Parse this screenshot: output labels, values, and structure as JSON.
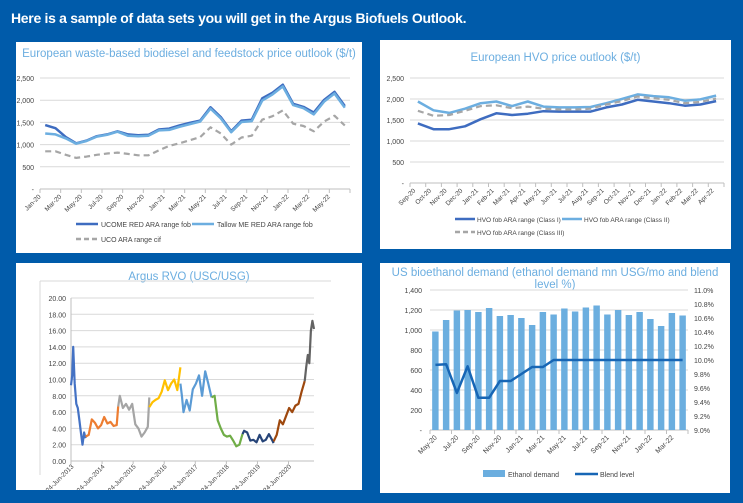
{
  "header": {
    "text": "Here is a sample of data sets you will get in the Argus Biofuels Outlook."
  },
  "colors": {
    "background": "#005BAA",
    "title": "#6CAEE0",
    "dark_blue": "#3E6CC0",
    "light_blue": "#6CAEE0",
    "grey": "#A6A6A6",
    "bar": "#6BAEDF",
    "blend": "#1766B5"
  },
  "chart_data": [
    {
      "id": "biodiesel",
      "type": "line",
      "title": "European waste-based biodiesel and feedstock price outlook ($/t)",
      "xlabel": "",
      "ylabel": "",
      "ylim": [
        0,
        2500
      ],
      "yticks": [
        "-",
        "500",
        "1,000",
        "1,500",
        "2,000",
        "2,500"
      ],
      "ytick_values": [
        0,
        500,
        1000,
        1500,
        2000,
        2500
      ],
      "x_tick_labels": [
        "Jan-20",
        "Mar-20",
        "May-20",
        "Jul-20",
        "Sep-20",
        "Nov-20",
        "Jan-21",
        "Mar-21",
        "May-21",
        "Jul-21",
        "Sep-21",
        "Nov-21",
        "Jan-22",
        "Mar-22",
        "May-22"
      ],
      "x": [
        "Jan-20",
        "Feb-20",
        "Mar-20",
        "Apr-20",
        "May-20",
        "Jun-20",
        "Jul-20",
        "Aug-20",
        "Sep-20",
        "Oct-20",
        "Nov-20",
        "Dec-20",
        "Jan-21",
        "Feb-21",
        "Mar-21",
        "Apr-21",
        "May-21",
        "Jun-21",
        "Jul-21",
        "Aug-21",
        "Sep-21",
        "Oct-21",
        "Nov-21",
        "Dec-21",
        "Jan-22",
        "Feb-22",
        "Mar-22",
        "Apr-22",
        "May-22",
        "Jun-22"
      ],
      "grid": true,
      "legend": "bottom",
      "series": [
        {
          "name": "UCOME RED ARA range fob",
          "style": "solid",
          "color": "#3E6CC0",
          "values": [
            1440,
            1370,
            1170,
            1030,
            1090,
            1190,
            1230,
            1300,
            1230,
            1210,
            1220,
            1340,
            1360,
            1430,
            1490,
            1540,
            1840,
            1620,
            1300,
            1540,
            1560,
            2040,
            2170,
            2350,
            1920,
            1850,
            1720,
            2010,
            2190,
            1870
          ]
        },
        {
          "name": "Tallow ME RED ARA range fob",
          "style": "solid",
          "color": "#6CAEE0",
          "values": [
            1250,
            1230,
            1140,
            1020,
            1080,
            1180,
            1220,
            1290,
            1200,
            1190,
            1200,
            1320,
            1330,
            1400,
            1460,
            1520,
            1810,
            1590,
            1280,
            1510,
            1530,
            1990,
            2130,
            2310,
            1890,
            1820,
            1680,
            1970,
            2150,
            1830
          ]
        },
        {
          "name": "UCO ARA range cif",
          "style": "dashed",
          "color": "#A6A6A6",
          "values": [
            850,
            850,
            770,
            700,
            730,
            770,
            800,
            820,
            790,
            760,
            760,
            870,
            970,
            1030,
            1100,
            1170,
            1390,
            1250,
            1000,
            1160,
            1200,
            1560,
            1640,
            1770,
            1470,
            1420,
            1300,
            1520,
            1650,
            1430
          ]
        }
      ]
    },
    {
      "id": "hvo",
      "type": "line",
      "title": "European HVO price outlook ($/t)",
      "xlabel": "",
      "ylabel": "",
      "ylim": [
        0,
        2500
      ],
      "yticks": [
        "-",
        "500",
        "1,000",
        "1,500",
        "2,000",
        "2,500"
      ],
      "ytick_values": [
        0,
        500,
        1000,
        1500,
        2000,
        2500
      ],
      "x": [
        "Sep-20",
        "Oct-20",
        "Nov-20",
        "Dec-20",
        "Jan-21",
        "Feb-21",
        "Mar-21",
        "Apr-21",
        "May-21",
        "Jun-21",
        "Jul-21",
        "Aug-21",
        "Sep-21",
        "Oct-21",
        "Nov-21",
        "Dec-21",
        "Jan-22",
        "Feb-22",
        "Mar-22",
        "Apr-22"
      ],
      "grid": true,
      "legend": "bottom",
      "series": [
        {
          "name": "HVO fob ARA range (Class I)",
          "style": "solid",
          "color": "#3E6CC0",
          "values": [
            1420,
            1280,
            1280,
            1350,
            1520,
            1660,
            1620,
            1650,
            1710,
            1700,
            1700,
            1700,
            1800,
            1870,
            1980,
            1940,
            1900,
            1840,
            1870,
            1950
          ]
        },
        {
          "name": "HVO fob ARA range (Class II)",
          "style": "solid",
          "color": "#6CAEE0",
          "values": [
            1940,
            1730,
            1670,
            1770,
            1900,
            1940,
            1830,
            1940,
            1820,
            1800,
            1800,
            1810,
            1900,
            2000,
            2110,
            2070,
            2040,
            1960,
            1990,
            2080
          ]
        },
        {
          "name": "HVO fob ARA range (Class III)",
          "style": "dashed",
          "color": "#A6A6A6",
          "values": [
            1720,
            1600,
            1620,
            1720,
            1830,
            1850,
            1780,
            1820,
            1770,
            1750,
            1750,
            1770,
            1870,
            1950,
            2060,
            2020,
            1980,
            1900,
            1930,
            2010
          ]
        }
      ]
    },
    {
      "id": "rvo",
      "type": "line",
      "title": "Argus RVO (USC/USG)",
      "xlabel": "",
      "ylabel": "",
      "ylim": [
        0,
        20
      ],
      "yticks": [
        "0.00",
        "2.00",
        "4.00",
        "6.00",
        "8.00",
        "10.00",
        "12.00",
        "14.00",
        "16.00",
        "18.00",
        "20.00"
      ],
      "ytick_values": [
        0,
        2,
        4,
        6,
        8,
        10,
        12,
        14,
        16,
        18,
        20
      ],
      "x_tick_labels": [
        "24-Jun-2013",
        "24-Jun-2014",
        "24-Jun-2015",
        "24-Jun-2016",
        "24-Jun-2017",
        "24-Jun-2018",
        "24-Jun-2019",
        "24-Jun-2020"
      ],
      "x_range_years": [
        2013.48,
        2021.3
      ],
      "grid": true,
      "legend": "none",
      "series": [
        {
          "name": "2013",
          "color": "#4472C4",
          "x": [
            2013.48,
            2013.52,
            2013.55,
            2013.6,
            2013.65,
            2013.7,
            2013.75,
            2013.8,
            2013.85,
            2013.9,
            2013.95
          ],
          "values": [
            9.3,
            10.5,
            14.0,
            9.5,
            7.0,
            6.5,
            5.0,
            3.5,
            2.0,
            3.5,
            2.8
          ]
        },
        {
          "name": "2014",
          "color": "#ED7D31",
          "x": [
            2013.95,
            2014.05,
            2014.15,
            2014.25,
            2014.35,
            2014.45,
            2014.55,
            2014.65,
            2014.75,
            2014.85,
            2014.95,
            2015.0
          ],
          "values": [
            3.0,
            3.2,
            5.1,
            4.7,
            4.0,
            4.4,
            5.4,
            4.6,
            4.8,
            4.3,
            4.4,
            6.7
          ]
        },
        {
          "name": "2015",
          "color": "#A5A5A5",
          "x": [
            2015.0,
            2015.05,
            2015.15,
            2015.25,
            2015.35,
            2015.45,
            2015.55,
            2015.65,
            2015.75,
            2015.85,
            2015.95,
            2016.0
          ],
          "values": [
            6.7,
            8.0,
            6.5,
            7.0,
            6.3,
            7.0,
            4.5,
            4.0,
            3.0,
            3.5,
            4.2,
            7.8
          ]
        },
        {
          "name": "2016",
          "color": "#FFC000",
          "x": [
            2016.0,
            2016.1,
            2016.2,
            2016.3,
            2016.4,
            2016.5,
            2016.6,
            2016.7,
            2016.8,
            2016.9,
            2017.0
          ],
          "values": [
            6.6,
            7.2,
            7.5,
            7.7,
            8.5,
            9.9,
            8.7,
            9.5,
            10.0,
            8.7,
            11.5
          ]
        },
        {
          "name": "2017",
          "color": "#5B9BD5",
          "x": [
            2017.0,
            2017.05,
            2017.1,
            2017.2,
            2017.3,
            2017.4,
            2017.5,
            2017.6,
            2017.7,
            2017.8,
            2017.9,
            2018.0
          ],
          "values": [
            9.5,
            8.0,
            6.0,
            7.5,
            6.2,
            8.8,
            9.5,
            10.5,
            8.0,
            11.0,
            9.5,
            7.8
          ]
        },
        {
          "name": "2018",
          "color": "#70AD47",
          "x": [
            2018.0,
            2018.1,
            2018.2,
            2018.3,
            2018.4,
            2018.5,
            2018.6,
            2018.7,
            2018.8,
            2018.9,
            2019.0
          ],
          "values": [
            7.8,
            8.0,
            5.0,
            4.0,
            3.2,
            3.0,
            3.1,
            2.5,
            1.8,
            2.0,
            3.3
          ]
        },
        {
          "name": "2019",
          "color": "#264478",
          "x": [
            2019.0,
            2019.05,
            2019.15,
            2019.25,
            2019.35,
            2019.45,
            2019.55,
            2019.65,
            2019.75,
            2019.85,
            2019.95,
            2020.0
          ],
          "values": [
            3.3,
            3.7,
            3.5,
            2.5,
            2.6,
            2.3,
            3.2,
            2.4,
            2.6,
            3.3,
            2.6,
            2.2
          ]
        },
        {
          "name": "2020",
          "color": "#9E480E",
          "x": [
            2020.0,
            2020.1,
            2020.2,
            2020.3,
            2020.4,
            2020.5,
            2020.6,
            2020.7,
            2020.8,
            2020.9,
            2021.0
          ],
          "values": [
            2.4,
            3.2,
            5.0,
            4.5,
            5.5,
            6.5,
            6.0,
            6.8,
            7.0,
            8.5,
            9.8
          ]
        },
        {
          "name": "2021",
          "color": "#636363",
          "x": [
            2021.0,
            2021.05,
            2021.1,
            2021.15,
            2021.2,
            2021.25,
            2021.3
          ],
          "values": [
            9.8,
            11.5,
            13.0,
            12.0,
            16.0,
            17.2,
            16.2
          ]
        }
      ]
    },
    {
      "id": "ethanol",
      "type": "bar",
      "title": "US bioethanol demand (ethanol demand mn USG/mo and blend level %)",
      "xlabel": "",
      "ylabel": "",
      "ylim": [
        0,
        1400
      ],
      "yticks": [
        "-",
        "200",
        "400",
        "600",
        "800",
        "1,000",
        "1,200",
        "1,400"
      ],
      "ytick_values": [
        0,
        200,
        400,
        600,
        800,
        1000,
        1200,
        1400
      ],
      "y2lim": [
        9.0,
        11.0
      ],
      "y2ticks": [
        "9.0%",
        "9.2%",
        "9.4%",
        "9.6%",
        "9.8%",
        "10.0%",
        "10.2%",
        "10.4%",
        "10.6%",
        "10.8%",
        "11.0%"
      ],
      "y2tick_values": [
        9.0,
        9.2,
        9.4,
        9.6,
        9.8,
        10.0,
        10.2,
        10.4,
        10.6,
        10.8,
        11.0
      ],
      "x_tick_labels": [
        "May-20",
        "Jul-20",
        "Sep-20",
        "Nov-20",
        "Jan-21",
        "Mar-21",
        "May-21",
        "Jul-21",
        "Sep-21",
        "Nov-21",
        "Jan-22",
        "Mar-22"
      ],
      "categories": [
        "May-20",
        "Jun-20",
        "Jul-20",
        "Aug-20",
        "Sep-20",
        "Oct-20",
        "Nov-20",
        "Dec-20",
        "Jan-21",
        "Feb-21",
        "Mar-21",
        "Apr-21",
        "May-21",
        "Jun-21",
        "Jul-21",
        "Aug-21",
        "Sep-21",
        "Oct-21",
        "Nov-21",
        "Dec-21",
        "Jan-22",
        "Feb-22",
        "Mar-22",
        "Apr-22"
      ],
      "grid": true,
      "legend": "bottom",
      "series": [
        {
          "name": "Ethanol demand",
          "type": "bar",
          "axis": "left",
          "color": "#6BAEDF",
          "values": [
            985,
            1100,
            1195,
            1200,
            1180,
            1220,
            1140,
            1150,
            1120,
            1050,
            1180,
            1155,
            1215,
            1185,
            1225,
            1245,
            1155,
            1200,
            1150,
            1180,
            1110,
            1040,
            1170,
            1145
          ]
        },
        {
          "name": "Blend level",
          "type": "line",
          "axis": "right",
          "color": "#1766B5",
          "values": [
            9.93,
            9.94,
            9.53,
            9.91,
            9.46,
            9.46,
            9.7,
            9.7,
            9.8,
            9.9,
            9.9,
            10.0,
            10.0,
            10.0,
            10.0,
            10.0,
            10.0,
            10.0,
            10.0,
            10.0,
            10.0,
            10.0,
            10.0,
            10.0
          ]
        }
      ]
    }
  ]
}
